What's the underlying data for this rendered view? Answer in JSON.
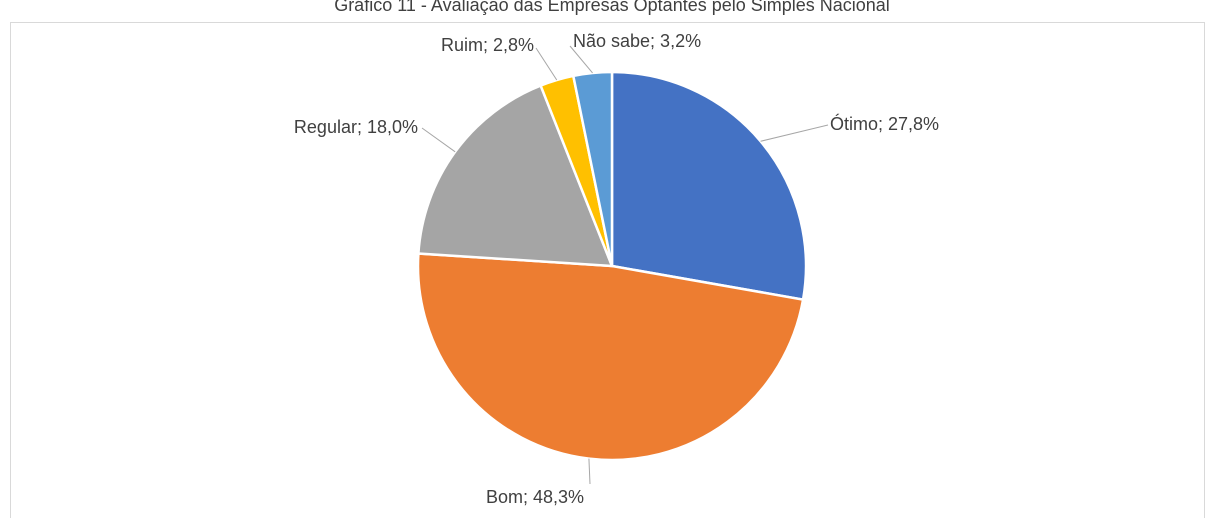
{
  "chart_data": {
    "type": "pie",
    "title": "Gráfico 11 - Avaliação das Empresas Optantes pelo Simples Nacional",
    "categories": [
      "Ótimo",
      "Bom",
      "Regular",
      "Ruim",
      "Não sabe"
    ],
    "values": [
      27.8,
      48.3,
      18.0,
      2.8,
      3.2
    ],
    "value_labels": [
      "Ótimo; 27,8%",
      "Bom; 48,3%",
      "Regular; 18,0%",
      "Ruim; 2,8%",
      "Não sabe; 3,2%"
    ],
    "colors": [
      "#4472c4",
      "#ed7d31",
      "#a5a5a5",
      "#ffc000",
      "#5b9bd5"
    ]
  }
}
